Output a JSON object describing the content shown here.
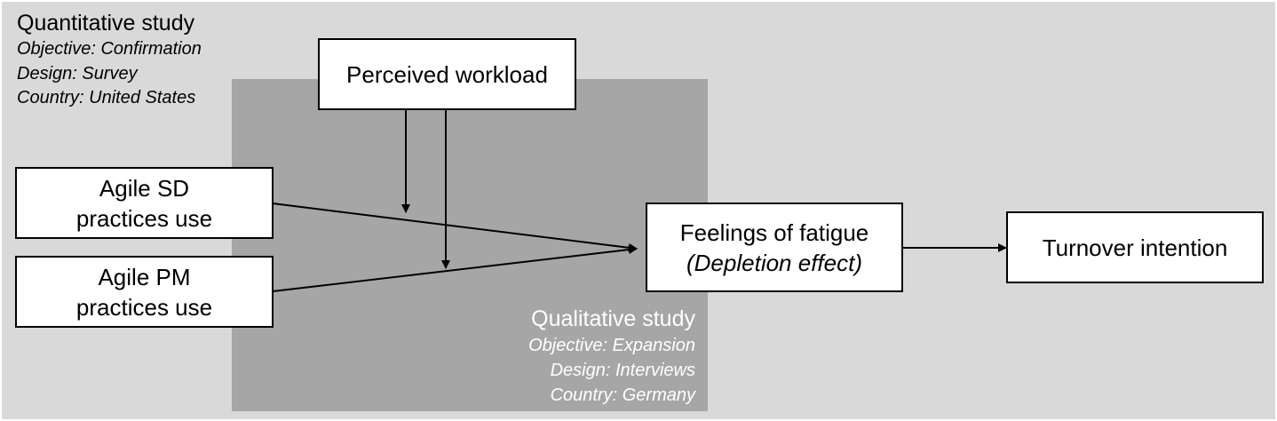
{
  "quantitative_study": {
    "title": "Quantitative study",
    "objective": "Objective: Confirmation",
    "design": "Design: Survey",
    "country": "Country: United States"
  },
  "qualitative_study": {
    "title": "Qualitative study",
    "objective": "Objective: Expansion",
    "design": "Design: Interviews",
    "country": "Country: Germany"
  },
  "nodes": {
    "perceived_workload": {
      "label": "Perceived workload"
    },
    "agile_sd": {
      "line1": "Agile SD",
      "line2": "practices use"
    },
    "agile_pm": {
      "line1": "Agile PM",
      "line2": "practices use"
    },
    "feelings_of_fatigue": {
      "line1": "Feelings of fatigue",
      "line2": "(Depletion effect)"
    },
    "turnover_intention": {
      "label": "Turnover intention"
    }
  },
  "colors": {
    "outer_background": "#d9d9d9",
    "inner_background": "#a6a6a6",
    "box_fill": "#ffffff",
    "line": "#000000"
  }
}
